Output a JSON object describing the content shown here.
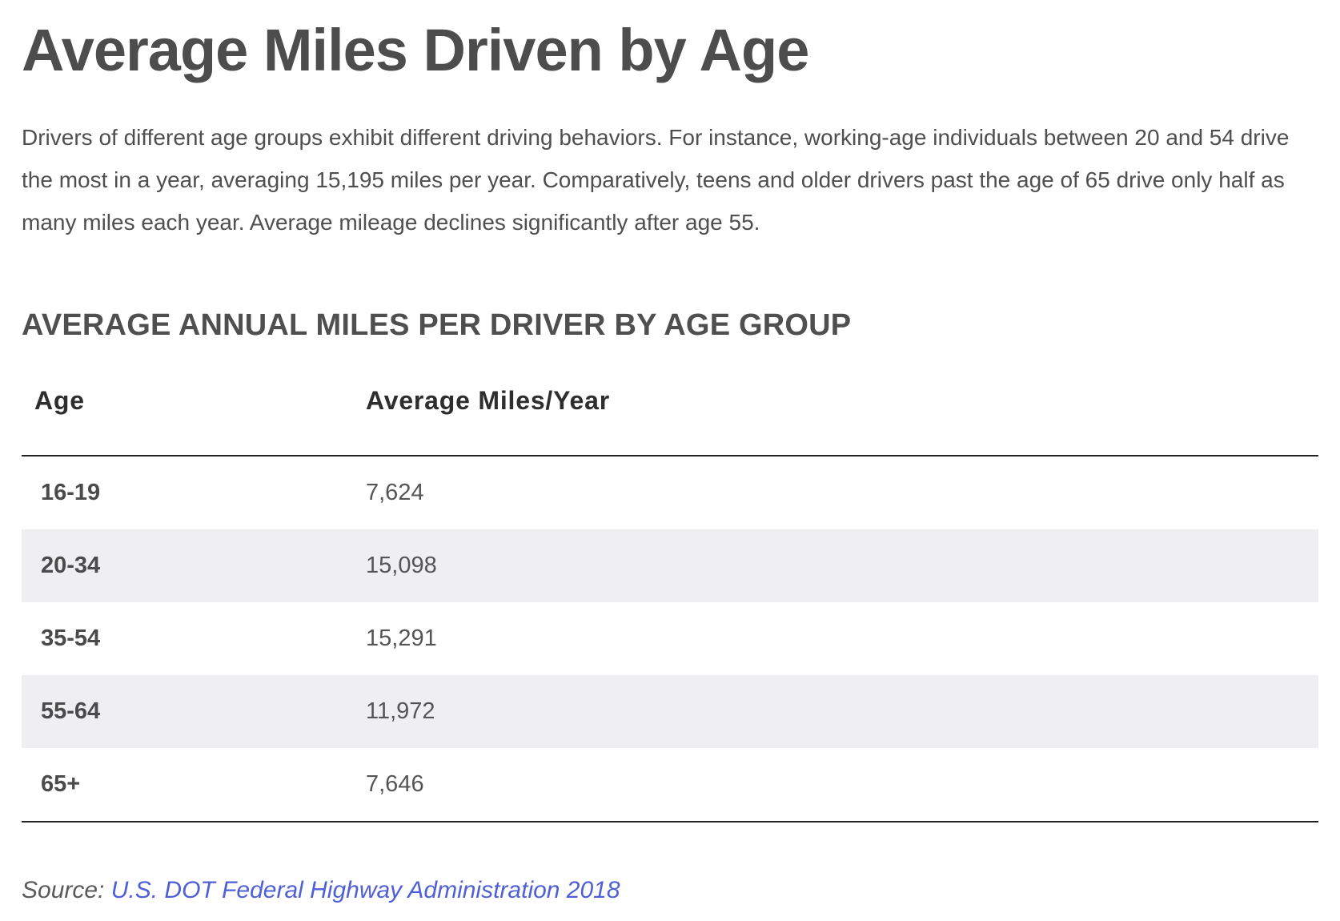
{
  "title": "Average Miles Driven by Age",
  "intro": "Drivers of different age groups exhibit different driving behaviors. For instance, working-age individuals between 20 and 54 drive the most in a year, averaging 15,195 miles per year. Comparatively, teens and older drivers past the age of 65 drive only half as many miles each year. Average mileage declines significantly after age 55.",
  "table": {
    "heading": "AVERAGE ANNUAL MILES PER DRIVER BY AGE GROUP",
    "columns": [
      "Age",
      "Average Miles/Year"
    ],
    "rows": [
      {
        "age": "16-19",
        "miles": "7,624"
      },
      {
        "age": "20-34",
        "miles": "15,098"
      },
      {
        "age": "35-54",
        "miles": "15,291"
      },
      {
        "age": "55-64",
        "miles": "11,972"
      },
      {
        "age": "65+",
        "miles": "7,646"
      }
    ]
  },
  "source": {
    "label": "Source:",
    "link_text": "U.S. DOT Federal Highway Administration 2018"
  },
  "colors": {
    "text": "#4d4d4d",
    "row_shade": "#efeff1",
    "rule": "#222222",
    "link": "#4f5fd6"
  }
}
